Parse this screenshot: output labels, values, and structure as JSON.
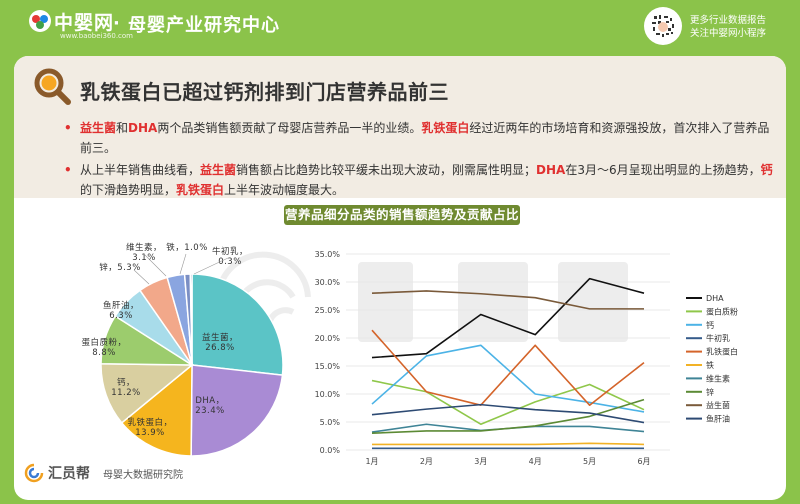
{
  "header": {
    "logo_text": "中婴网",
    "logo_url": "www.baobei360.com",
    "separator": "·",
    "title": "母婴产业研究中心",
    "qr_line1": "更多行业数据报告",
    "qr_line2": "关注中婴网小程序"
  },
  "content": {
    "title": "乳铁蛋白已超过钙剂排到门店营养品前三",
    "bullet1": {
      "p1": "益生菌",
      "p2": "和",
      "p3": "DHA",
      "p4": "两个品类销售额贡献了母婴店营养品一半的业绩。",
      "p5": "乳铁蛋白",
      "p6": "经过近两年的市场培育和资源强投放，首次排入了营养品前三。"
    },
    "bullet2": {
      "p1": "从上半年销售曲线看，",
      "p2": "益生菌",
      "p3": "销售额占比趋势比较平缓未出现大波动，刚需属性明显；",
      "p4": "DHA",
      "p5": "在3月～6月呈现出明显的上扬趋势，",
      "p6": "钙",
      "p7": "的下滑趋势明显，",
      "p8": "乳铁蛋白",
      "p9": "上半年波动幅度最大。"
    },
    "chart_banner": "营养品细分品类的销售额趋势及贡献占比"
  },
  "footer": {
    "brand": "汇员帮",
    "org": "母婴大数据研究院"
  },
  "chart_data": [
    {
      "type": "pie",
      "slices": [
        {
          "name": "益生菌",
          "value": 26.8,
          "label": "益生菌，26.8%",
          "color": "#5bc4c6"
        },
        {
          "name": "DHA",
          "value": 23.4,
          "label": "DHA，23.4%",
          "color": "#a98bd4"
        },
        {
          "name": "乳铁蛋白",
          "value": 13.9,
          "label": "乳铁蛋白，13.9%",
          "color": "#f5b51e"
        },
        {
          "name": "钙",
          "value": 11.2,
          "label": "钙，11.2%",
          "color": "#d9cfa0"
        },
        {
          "name": "蛋白质粉",
          "value": 8.8,
          "label": "蛋白质粉，8.8%",
          "color": "#9ccc6d"
        },
        {
          "name": "鱼肝油",
          "value": 6.3,
          "label": "鱼肝油，6.3%",
          "color": "#a8dcea"
        },
        {
          "name": "锌",
          "value": 5.3,
          "label": "锌，5.3%",
          "color": "#f2a88a"
        },
        {
          "name": "维生素",
          "value": 3.1,
          "label": "维生素，3.1%",
          "color": "#8aa5e0"
        },
        {
          "name": "铁",
          "value": 1.0,
          "label": "铁，1.0%",
          "color": "#7b8fc4"
        },
        {
          "name": "牛初乳",
          "value": 0.3,
          "label": "牛初乳，0.3%",
          "color": "#4a6a9a"
        }
      ]
    },
    {
      "type": "line",
      "categories": [
        "1月",
        "2月",
        "3月",
        "4月",
        "5月",
        "6月"
      ],
      "ylim": [
        0,
        35
      ],
      "yticks": [
        "0.0%",
        "5.0%",
        "10.0%",
        "15.0%",
        "20.0%",
        "25.0%",
        "30.0%",
        "35.0%"
      ],
      "grid": true,
      "legend": "right",
      "series": [
        {
          "name": "DHA",
          "color": "#111111",
          "values": [
            16.5,
            17.2,
            24.2,
            20.6,
            30.6,
            28.0
          ]
        },
        {
          "name": "蛋白质粉",
          "color": "#8fc74a",
          "values": [
            12.4,
            10.4,
            4.6,
            8.6,
            11.7,
            7.2
          ]
        },
        {
          "name": "钙",
          "color": "#4cb3e6",
          "values": [
            8.2,
            16.8,
            18.7,
            10.0,
            8.5,
            6.8
          ]
        },
        {
          "name": "牛初乳",
          "color": "#355b8a",
          "values": [
            0.3,
            0.3,
            0.3,
            0.3,
            0.3,
            0.3
          ]
        },
        {
          "name": "乳铁蛋白",
          "color": "#d4642a",
          "values": [
            21.4,
            10.4,
            8.0,
            18.7,
            8.0,
            15.6
          ]
        },
        {
          "name": "铁",
          "color": "#f2b226",
          "values": [
            1.0,
            1.0,
            1.0,
            1.0,
            1.2,
            1.0
          ]
        },
        {
          "name": "维生素",
          "color": "#3f8496",
          "values": [
            3.2,
            4.6,
            3.5,
            4.2,
            4.2,
            3.3
          ]
        },
        {
          "name": "锌",
          "color": "#5c8a35",
          "values": [
            3.0,
            3.4,
            3.4,
            4.3,
            6.0,
            9.0
          ]
        },
        {
          "name": "益生菌",
          "color": "#7a5a3a",
          "values": [
            28.0,
            28.4,
            27.9,
            27.2,
            25.2,
            25.2
          ]
        },
        {
          "name": "鱼肝油",
          "color": "#2d4a73",
          "values": [
            6.3,
            7.3,
            8.1,
            7.2,
            6.6,
            4.9
          ]
        }
      ]
    }
  ]
}
